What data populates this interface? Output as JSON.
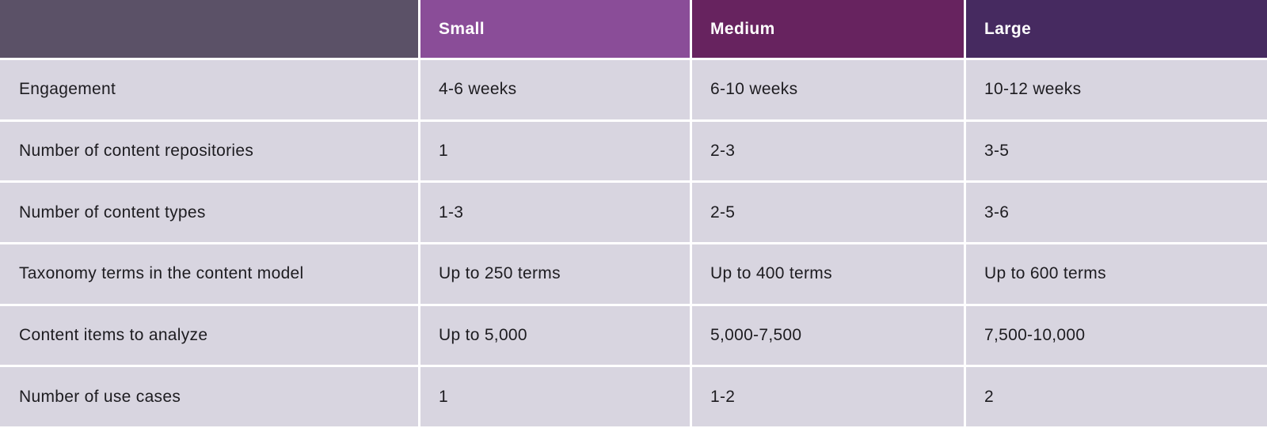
{
  "table": {
    "columns": [
      {
        "label": "",
        "header_bg": "#5B5167"
      },
      {
        "label": "Small",
        "header_bg": "#8A4D98"
      },
      {
        "label": "Medium",
        "header_bg": "#67235F"
      },
      {
        "label": "Large",
        "header_bg": "#462A60"
      }
    ],
    "rows": [
      {
        "label": "Engagement",
        "small": "4-6 weeks",
        "medium": "6-10 weeks",
        "large": "10-12 weeks"
      },
      {
        "label": "Number of content repositories",
        "small": "1",
        "medium": "2-3",
        "large": "3-5"
      },
      {
        "label": "Number of content types",
        "small": "1-3",
        "medium": "2-5",
        "large": "3-6"
      },
      {
        "label": "Taxonomy terms in the content model",
        "small": "Up to 250 terms",
        "medium": "Up to 400 terms",
        "large": "Up to 600 terms"
      },
      {
        "label": "Content items to analyze",
        "small": "Up to 5,000",
        "medium": "5,000-7,500",
        "large": "7,500-10,000"
      },
      {
        "label": "Number of use cases",
        "small": "1",
        "medium": "1-2",
        "large": "2"
      }
    ],
    "colors": {
      "body_cell_bg": "#D8D5E0",
      "gutter": "#FFFFFF",
      "body_text": "#1D1C20",
      "header_text": "#FFFFFF"
    }
  }
}
